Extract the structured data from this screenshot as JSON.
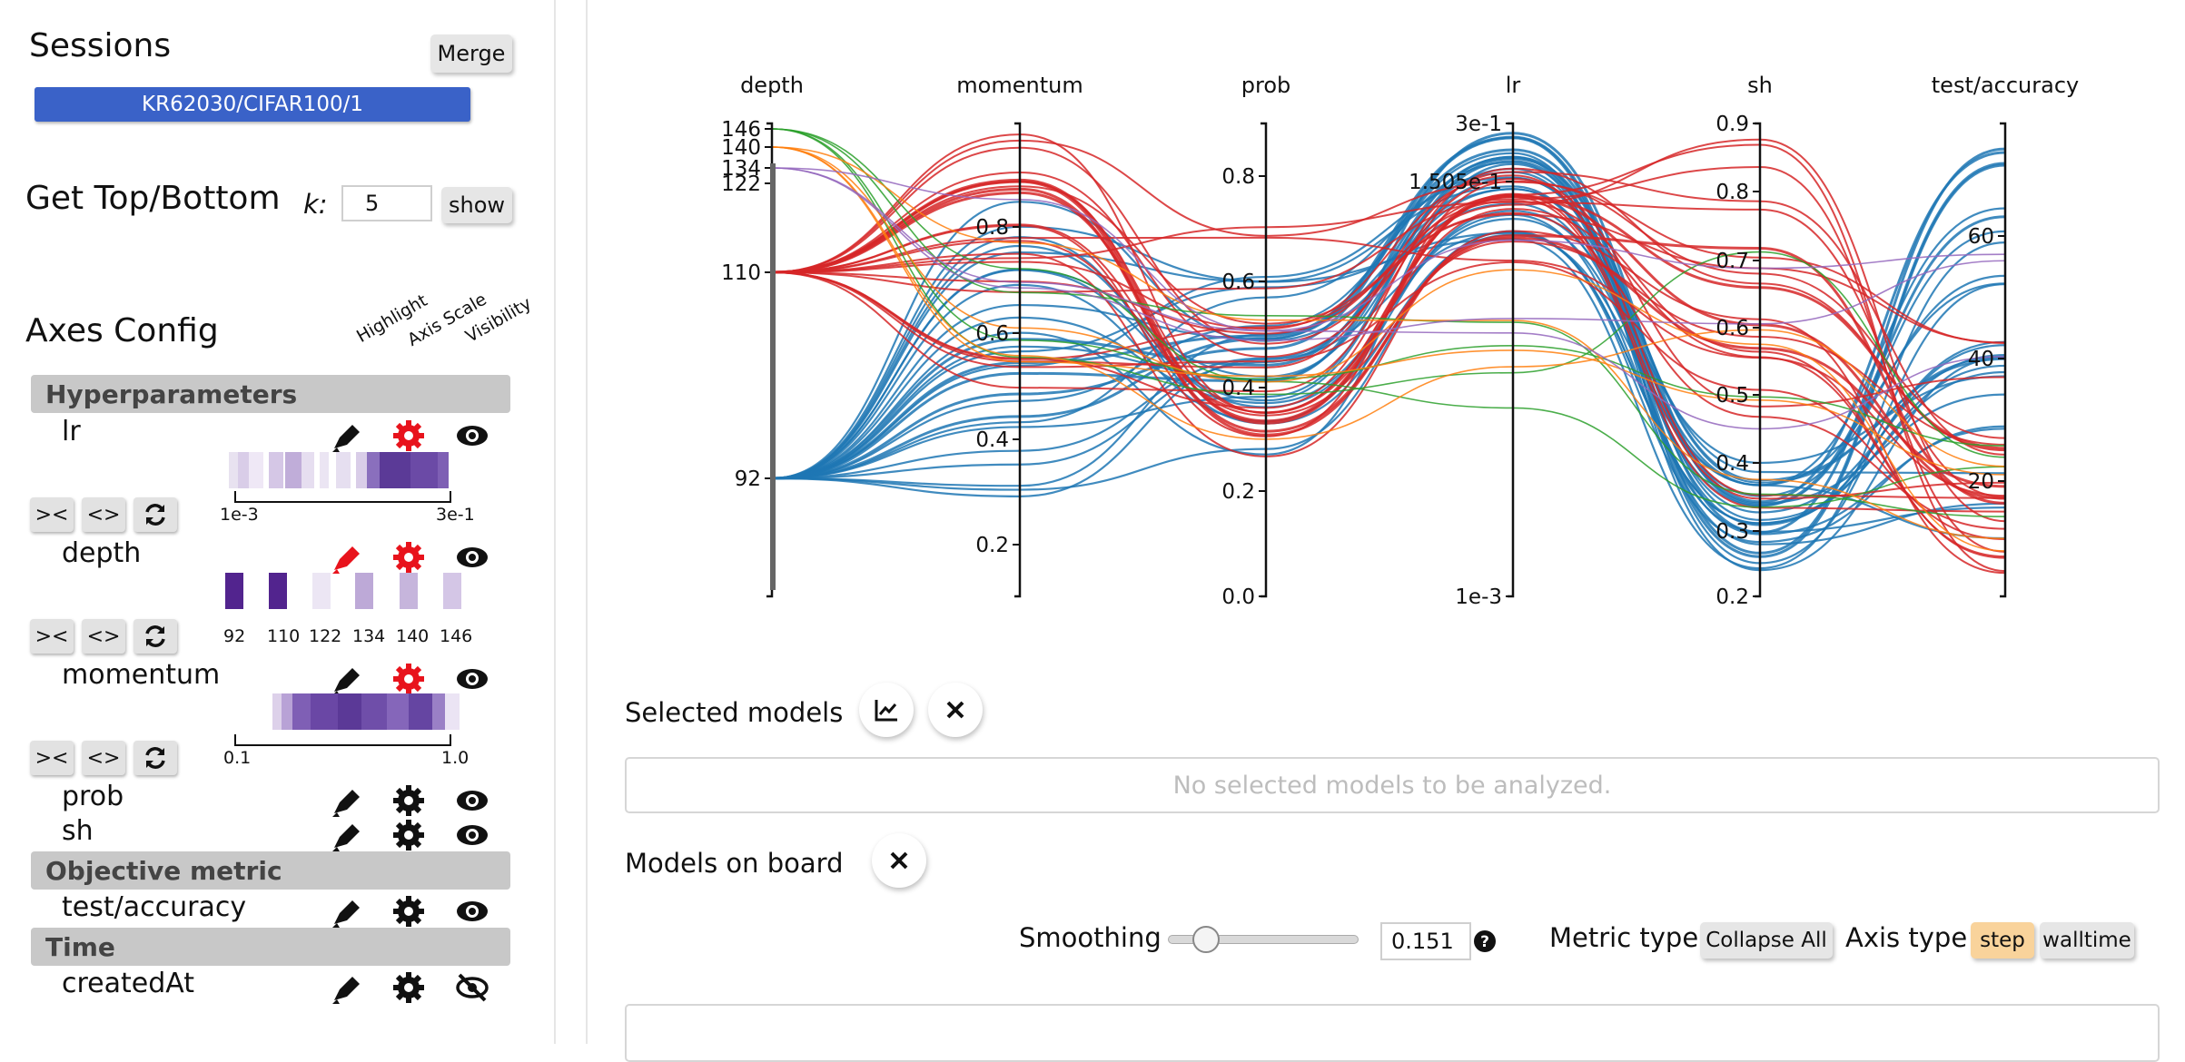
{
  "sessions": {
    "title": "Sessions",
    "merge_label": "Merge",
    "session_name": "KR62030/CIFAR100/1"
  },
  "topbottom": {
    "title": "Get Top/Bottom",
    "k_label": "k:",
    "k_value": "5",
    "show_label": "show"
  },
  "axes_config": {
    "title": "Axes Config",
    "col_headers": [
      "Highlight",
      "Axis Scale",
      "Visibility"
    ],
    "sections": {
      "hyper": "Hyperparameters",
      "objective": "Objective metric",
      "time": "Time"
    },
    "params": {
      "lr": {
        "name": "lr",
        "range_min": "1e-3",
        "range_max": "3e-1"
      },
      "depth": {
        "name": "depth",
        "ticks": [
          "92",
          "110",
          "122",
          "134",
          "140",
          "146"
        ]
      },
      "momentum": {
        "name": "momentum",
        "range_min": "0.1",
        "range_max": "1.0"
      },
      "prob": {
        "name": "prob"
      },
      "sh": {
        "name": "sh"
      },
      "test_accuracy": {
        "name": "test/accuracy"
      },
      "createdAt": {
        "name": "createdAt"
      }
    },
    "buttons": {
      "shrink": "><",
      "expand": "<>"
    }
  },
  "colors": {
    "red": "#d62728",
    "blue": "#1f77b4",
    "green": "#2ca02c",
    "orange": "#ff7f0e",
    "purple": "#9467bd",
    "accent_red": "#e8131c",
    "pill_blue": "#3a62c8",
    "step_orange": "#f9d39b"
  },
  "chart_data": {
    "type": "parallel-coordinates",
    "axes": [
      {
        "name": "depth",
        "ticks": [
          "146",
          "140",
          "134",
          "122",
          "110",
          "92"
        ]
      },
      {
        "name": "momentum",
        "ticks": [
          "0.8",
          "0.6",
          "0.4",
          "0.2"
        ]
      },
      {
        "name": "prob",
        "ticks": [
          "0.8",
          "0.6",
          "0.4",
          "0.2",
          "0.0"
        ]
      },
      {
        "name": "lr",
        "ticks": [
          "3e-1",
          "1.505e-1",
          "1e-3"
        ],
        "scale": "log"
      },
      {
        "name": "sh",
        "ticks": [
          "0.9",
          "0.8",
          "0.7",
          "0.6",
          "0.5",
          "0.4",
          "0.3",
          "0.2"
        ]
      },
      {
        "name": "test/accuracy",
        "ticks": [
          "60",
          "40",
          "20"
        ]
      }
    ]
  },
  "selected_models": {
    "title": "Selected models",
    "empty_text": "No selected models to be analyzed."
  },
  "models_on_board": {
    "title": "Models on board"
  },
  "controls": {
    "smoothing_label": "Smoothing",
    "smoothing_value": "0.151",
    "smoothing_level": 0.151,
    "metric_type_label": "Metric type",
    "collapse_label": "Collapse All",
    "axis_type_label": "Axis type",
    "step_label": "step",
    "walltime_label": "walltime"
  }
}
